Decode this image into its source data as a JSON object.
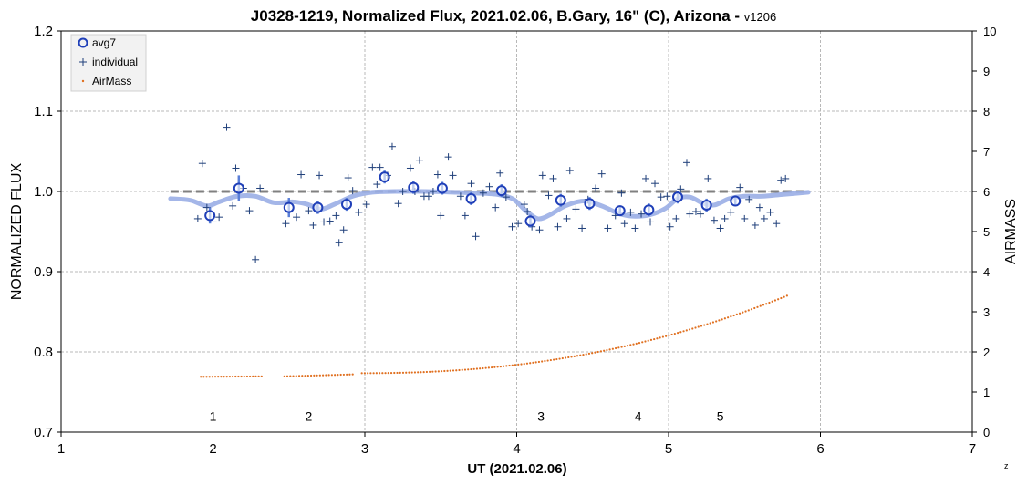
{
  "chart_data": {
    "type": "scatter",
    "title": "J0328-1219, Normalized Flux, 2021.02.06, B.Gary, 16\" (C), Arizona - ",
    "title_version": "v1206",
    "xlabel": "UT (2021.02.06)",
    "ylabel": "NORMALIZED FLUX",
    "y2label": "AIRMASS",
    "xlim": [
      1,
      7
    ],
    "ylim": [
      0.7,
      1.2
    ],
    "y2lim": [
      0,
      10
    ],
    "x_ticks": [
      1,
      2,
      3,
      4,
      5,
      6,
      7
    ],
    "y_ticks": [
      0.7,
      0.8,
      0.9,
      1.0,
      1.1,
      1.2
    ],
    "y_tick_labels": [
      "0.7",
      "0.8",
      "0.9",
      "1.0",
      "1.1",
      "1.2"
    ],
    "y2_ticks": [
      0,
      1,
      2,
      3,
      4,
      5,
      6,
      7,
      8,
      9,
      10
    ],
    "grid": true,
    "legend_position": "top-left",
    "corner_mark": "z",
    "colors": {
      "avg7": "#1f3fb8",
      "individual": "#1f3f7a",
      "airmass": "#e07020",
      "model": "#9aaee6",
      "reference": "#808080"
    },
    "reference_level": 1.0,
    "reference_range": [
      1.72,
      5.92
    ],
    "annotations": [
      {
        "text": "1",
        "x": 2.0,
        "y": 0.72
      },
      {
        "text": "2",
        "x": 2.63,
        "y": 0.72
      },
      {
        "text": "3",
        "x": 4.16,
        "y": 0.72
      },
      {
        "text": "4",
        "x": 4.8,
        "y": 0.72
      },
      {
        "text": "5",
        "x": 5.34,
        "y": 0.72
      }
    ],
    "series": [
      {
        "name": "avg7",
        "marker": "circle",
        "points": [
          {
            "x": 1.98,
            "y": 0.97,
            "err": 0.01
          },
          {
            "x": 2.17,
            "y": 1.004,
            "err": 0.016
          },
          {
            "x": 2.5,
            "y": 0.98,
            "err": 0.012
          },
          {
            "x": 2.69,
            "y": 0.98,
            "err": 0.008
          },
          {
            "x": 2.88,
            "y": 0.984,
            "err": 0.008
          },
          {
            "x": 3.13,
            "y": 1.018,
            "err": 0.008
          },
          {
            "x": 3.32,
            "y": 1.005,
            "err": 0.008
          },
          {
            "x": 3.51,
            "y": 1.004,
            "err": 0.008
          },
          {
            "x": 3.7,
            "y": 0.991,
            "err": 0.008
          },
          {
            "x": 3.9,
            "y": 1.001,
            "err": 0.008
          },
          {
            "x": 4.09,
            "y": 0.963,
            "err": 0.008
          },
          {
            "x": 4.29,
            "y": 0.989,
            "err": 0.008
          },
          {
            "x": 4.48,
            "y": 0.985,
            "err": 0.008
          },
          {
            "x": 4.68,
            "y": 0.976,
            "err": 0.006
          },
          {
            "x": 4.87,
            "y": 0.977,
            "err": 0.008
          },
          {
            "x": 5.06,
            "y": 0.993,
            "err": 0.008
          },
          {
            "x": 5.25,
            "y": 0.983,
            "err": 0.008
          },
          {
            "x": 5.44,
            "y": 0.988,
            "err": 0.006
          }
        ]
      },
      {
        "name": "individual",
        "marker": "plus",
        "points": [
          {
            "x": 1.9,
            "y": 0.966
          },
          {
            "x": 1.93,
            "y": 1.035
          },
          {
            "x": 1.96,
            "y": 0.98
          },
          {
            "x": 2.0,
            "y": 0.962
          },
          {
            "x": 2.04,
            "y": 0.968
          },
          {
            "x": 2.09,
            "y": 1.08
          },
          {
            "x": 2.13,
            "y": 0.982
          },
          {
            "x": 2.15,
            "y": 1.029
          },
          {
            "x": 2.2,
            "y": 1.004
          },
          {
            "x": 2.24,
            "y": 0.976
          },
          {
            "x": 2.28,
            "y": 0.915
          },
          {
            "x": 2.31,
            "y": 1.004
          },
          {
            "x": 2.48,
            "y": 0.96
          },
          {
            "x": 2.55,
            "y": 0.968
          },
          {
            "x": 2.58,
            "y": 1.021
          },
          {
            "x": 2.63,
            "y": 0.976
          },
          {
            "x": 2.66,
            "y": 0.958
          },
          {
            "x": 2.7,
            "y": 1.02
          },
          {
            "x": 2.73,
            "y": 0.962
          },
          {
            "x": 2.77,
            "y": 0.963
          },
          {
            "x": 2.81,
            "y": 0.97
          },
          {
            "x": 2.83,
            "y": 0.936
          },
          {
            "x": 2.86,
            "y": 0.952
          },
          {
            "x": 2.89,
            "y": 1.017
          },
          {
            "x": 2.92,
            "y": 1.001
          },
          {
            "x": 2.96,
            "y": 0.974
          },
          {
            "x": 3.01,
            "y": 0.984
          },
          {
            "x": 3.05,
            "y": 1.03
          },
          {
            "x": 3.08,
            "y": 1.009
          },
          {
            "x": 3.1,
            "y": 1.03
          },
          {
            "x": 3.15,
            "y": 1.02
          },
          {
            "x": 3.18,
            "y": 1.056
          },
          {
            "x": 3.22,
            "y": 0.985
          },
          {
            "x": 3.25,
            "y": 1.0
          },
          {
            "x": 3.3,
            "y": 1.029
          },
          {
            "x": 3.33,
            "y": 1.0
          },
          {
            "x": 3.36,
            "y": 1.039
          },
          {
            "x": 3.39,
            "y": 0.994
          },
          {
            "x": 3.42,
            "y": 0.994
          },
          {
            "x": 3.45,
            "y": 1.0
          },
          {
            "x": 3.48,
            "y": 1.021
          },
          {
            "x": 3.5,
            "y": 0.97
          },
          {
            "x": 3.55,
            "y": 1.043
          },
          {
            "x": 3.58,
            "y": 1.02
          },
          {
            "x": 3.63,
            "y": 0.994
          },
          {
            "x": 3.66,
            "y": 0.97
          },
          {
            "x": 3.7,
            "y": 1.01
          },
          {
            "x": 3.73,
            "y": 0.944
          },
          {
            "x": 3.78,
            "y": 0.998
          },
          {
            "x": 3.82,
            "y": 1.006
          },
          {
            "x": 3.86,
            "y": 0.98
          },
          {
            "x": 3.89,
            "y": 1.023
          },
          {
            "x": 3.93,
            "y": 0.993
          },
          {
            "x": 3.97,
            "y": 0.956
          },
          {
            "x": 4.01,
            "y": 0.96
          },
          {
            "x": 4.05,
            "y": 0.984
          },
          {
            "x": 4.07,
            "y": 0.975
          },
          {
            "x": 4.1,
            "y": 0.956
          },
          {
            "x": 4.15,
            "y": 0.952
          },
          {
            "x": 4.17,
            "y": 1.02
          },
          {
            "x": 4.21,
            "y": 0.995
          },
          {
            "x": 4.24,
            "y": 1.016
          },
          {
            "x": 4.27,
            "y": 0.956
          },
          {
            "x": 4.33,
            "y": 0.966
          },
          {
            "x": 4.35,
            "y": 1.026
          },
          {
            "x": 4.39,
            "y": 0.978
          },
          {
            "x": 4.43,
            "y": 0.954
          },
          {
            "x": 4.47,
            "y": 0.99
          },
          {
            "x": 4.52,
            "y": 1.004
          },
          {
            "x": 4.56,
            "y": 1.022
          },
          {
            "x": 4.6,
            "y": 0.954
          },
          {
            "x": 4.65,
            "y": 0.97
          },
          {
            "x": 4.69,
            "y": 0.998
          },
          {
            "x": 4.71,
            "y": 0.96
          },
          {
            "x": 4.75,
            "y": 0.974
          },
          {
            "x": 4.78,
            "y": 0.954
          },
          {
            "x": 4.82,
            "y": 0.972
          },
          {
            "x": 4.85,
            "y": 1.016
          },
          {
            "x": 4.88,
            "y": 0.962
          },
          {
            "x": 4.91,
            "y": 1.01
          },
          {
            "x": 4.95,
            "y": 0.993
          },
          {
            "x": 4.99,
            "y": 0.994
          },
          {
            "x": 5.01,
            "y": 0.956
          },
          {
            "x": 5.05,
            "y": 0.966
          },
          {
            "x": 5.08,
            "y": 1.003
          },
          {
            "x": 5.12,
            "y": 1.036
          },
          {
            "x": 5.14,
            "y": 0.972
          },
          {
            "x": 5.18,
            "y": 0.975
          },
          {
            "x": 5.21,
            "y": 0.972
          },
          {
            "x": 5.26,
            "y": 1.016
          },
          {
            "x": 5.3,
            "y": 0.964
          },
          {
            "x": 5.34,
            "y": 0.954
          },
          {
            "x": 5.37,
            "y": 0.966
          },
          {
            "x": 5.41,
            "y": 0.974
          },
          {
            "x": 5.44,
            "y": 0.988
          },
          {
            "x": 5.47,
            "y": 1.005
          },
          {
            "x": 5.5,
            "y": 0.966
          },
          {
            "x": 5.53,
            "y": 0.99
          },
          {
            "x": 5.57,
            "y": 0.958
          },
          {
            "x": 5.6,
            "y": 0.98
          },
          {
            "x": 5.63,
            "y": 0.966
          },
          {
            "x": 5.67,
            "y": 0.974
          },
          {
            "x": 5.71,
            "y": 0.96
          },
          {
            "x": 5.74,
            "y": 1.014
          },
          {
            "x": 5.77,
            "y": 1.016
          }
        ]
      },
      {
        "name": "AirMass",
        "marker": "dot",
        "axis": "right",
        "segments": [
          {
            "x_start": 1.92,
            "x_end": 2.32,
            "count": 22,
            "y_start": 1.38,
            "y_end": 1.39
          },
          {
            "x_start": 2.47,
            "x_end": 2.92,
            "count": 24,
            "y_start": 1.39,
            "y_end": 1.44
          },
          {
            "x_start": 2.98,
            "x_end": 5.78,
            "count": 145,
            "y_start": 1.47,
            "y_end": 3.4
          }
        ]
      },
      {
        "name": "model",
        "marker": "line",
        "points": [
          {
            "x": 1.72,
            "y": 0.991
          },
          {
            "x": 1.85,
            "y": 0.989
          },
          {
            "x": 1.96,
            "y": 0.982
          },
          {
            "x": 2.04,
            "y": 0.987
          },
          {
            "x": 2.16,
            "y": 0.994
          },
          {
            "x": 2.28,
            "y": 0.994
          },
          {
            "x": 2.4,
            "y": 0.986
          },
          {
            "x": 2.53,
            "y": 0.987
          },
          {
            "x": 2.62,
            "y": 0.984
          },
          {
            "x": 2.71,
            "y": 0.978
          },
          {
            "x": 2.8,
            "y": 0.984
          },
          {
            "x": 2.92,
            "y": 0.994
          },
          {
            "x": 3.05,
            "y": 0.999
          },
          {
            "x": 3.2,
            "y": 1.0
          },
          {
            "x": 3.4,
            "y": 1.0
          },
          {
            "x": 3.58,
            "y": 0.999
          },
          {
            "x": 3.72,
            "y": 0.998
          },
          {
            "x": 3.88,
            "y": 0.996
          },
          {
            "x": 3.98,
            "y": 0.99
          },
          {
            "x": 4.06,
            "y": 0.976
          },
          {
            "x": 4.14,
            "y": 0.966
          },
          {
            "x": 4.22,
            "y": 0.971
          },
          {
            "x": 4.32,
            "y": 0.982
          },
          {
            "x": 4.44,
            "y": 0.988
          },
          {
            "x": 4.56,
            "y": 0.982
          },
          {
            "x": 4.68,
            "y": 0.972
          },
          {
            "x": 4.78,
            "y": 0.969
          },
          {
            "x": 4.88,
            "y": 0.971
          },
          {
            "x": 4.98,
            "y": 0.979
          },
          {
            "x": 5.06,
            "y": 0.991
          },
          {
            "x": 5.14,
            "y": 0.993
          },
          {
            "x": 5.22,
            "y": 0.986
          },
          {
            "x": 5.3,
            "y": 0.983
          },
          {
            "x": 5.4,
            "y": 0.991
          },
          {
            "x": 5.5,
            "y": 0.994
          },
          {
            "x": 5.62,
            "y": 0.994
          },
          {
            "x": 5.74,
            "y": 0.996
          },
          {
            "x": 5.92,
            "y": 0.999
          }
        ]
      }
    ]
  }
}
